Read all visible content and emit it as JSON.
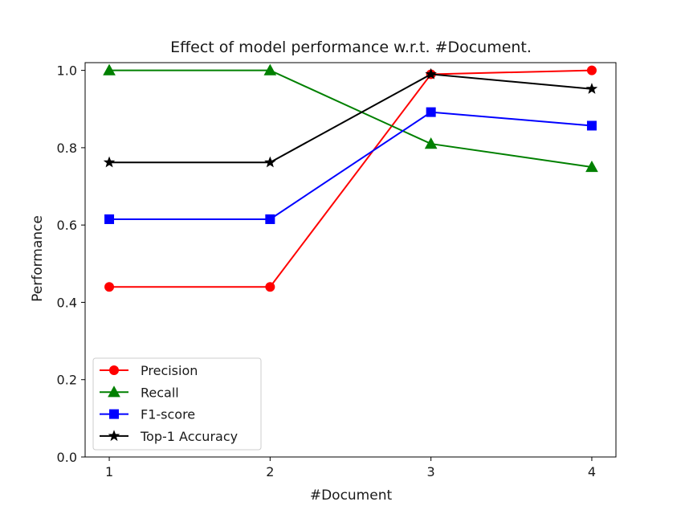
{
  "chart_data": {
    "type": "line",
    "title": "Effect of model performance w.r.t. #Document.",
    "xlabel": "#Document",
    "ylabel": "Performance",
    "x": [
      1,
      2,
      3,
      4
    ],
    "x_ticks": [
      "1",
      "2",
      "3",
      "4"
    ],
    "ylim": [
      0.0,
      1.02
    ],
    "y_ticks": [
      "0.0",
      "0.2",
      "0.4",
      "0.6",
      "0.8",
      "1.0"
    ],
    "grid": false,
    "legend_position": "lower-left",
    "series": [
      {
        "name": "Precision",
        "values": [
          0.44,
          0.44,
          0.99,
          1.0
        ],
        "color": "#ff0000",
        "marker": "circle"
      },
      {
        "name": "Recall",
        "values": [
          1.0,
          1.0,
          0.81,
          0.75
        ],
        "color": "#008000",
        "marker": "triangle"
      },
      {
        "name": "F1-score",
        "values": [
          0.615,
          0.615,
          0.892,
          0.857
        ],
        "color": "#0000ff",
        "marker": "square"
      },
      {
        "name": "Top-1 Accuracy",
        "values": [
          0.762,
          0.762,
          0.99,
          0.952
        ],
        "color": "#000000",
        "marker": "star"
      }
    ]
  }
}
